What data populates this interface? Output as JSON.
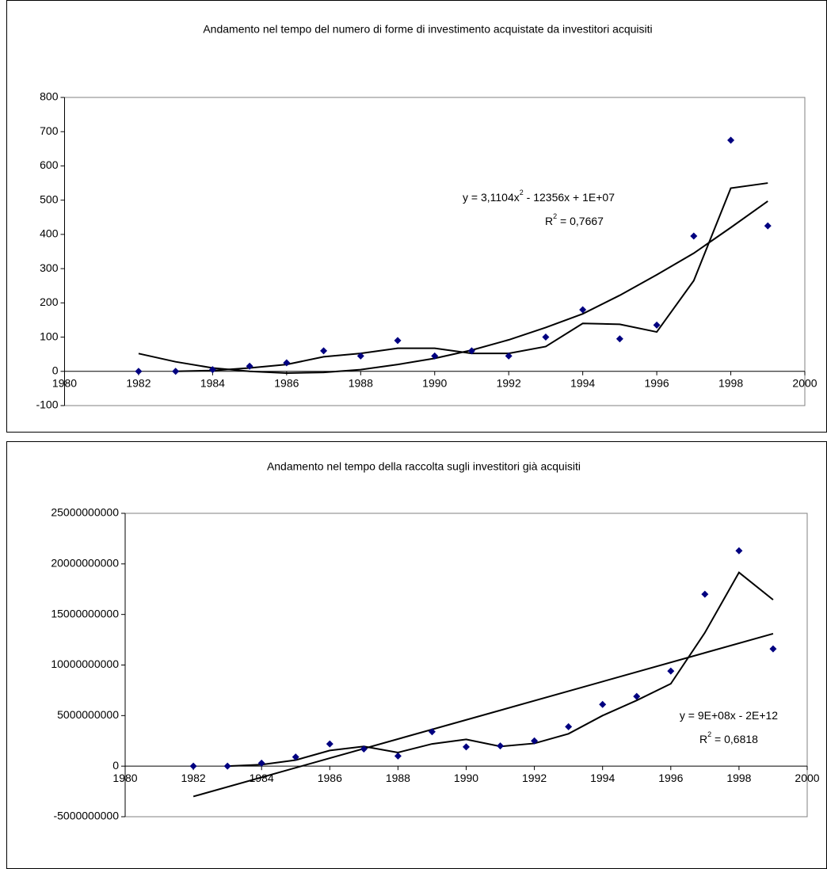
{
  "chart_data": [
    {
      "type": "scatter",
      "title": "Andamento nel tempo del numero di forme di investimento acquistate da investitori acquisiti",
      "x": [
        1982,
        1983,
        1984,
        1985,
        1986,
        1987,
        1988,
        1989,
        1990,
        1991,
        1992,
        1993,
        1994,
        1995,
        1996,
        1997,
        1998,
        1999
      ],
      "values": [
        0,
        0,
        5,
        15,
        25,
        60,
        45,
        90,
        45,
        60,
        45,
        100,
        180,
        95,
        135,
        395,
        675,
        425
      ],
      "color": "#000080",
      "lines": [
        {
          "color": "#000000",
          "x": [
            1983,
            1984,
            1985,
            1986,
            1987,
            1988,
            1989,
            1990,
            1991,
            1992,
            1993,
            1994,
            1995,
            1996,
            1997,
            1998,
            1999
          ],
          "values": [
            0,
            2.5,
            10,
            20,
            42.5,
            52.5,
            67.5,
            67.5,
            52.5,
            52.5,
            72.5,
            140,
            137.5,
            115,
            265,
            535,
            550
          ]
        },
        {
          "color": "#000000",
          "x": [
            1982,
            1983,
            1984,
            1985,
            1986,
            1987,
            1988,
            1989,
            1990,
            1991,
            1992,
            1993,
            1994,
            1995,
            1996,
            1997,
            1998,
            1999
          ],
          "values": [
            52,
            28,
            10,
            0,
            -5,
            -3,
            5,
            20,
            38,
            62,
            92,
            128,
            168,
            222,
            282,
            345,
            420,
            497
          ]
        }
      ],
      "equation": [
        "y = 3,1104x",
        "2",
        " - 12356x + 1E+07"
      ],
      "r_squared": [
        "R",
        "2",
        " = 0,7667"
      ],
      "xlim": [
        1980,
        2000
      ],
      "xticks": [
        1980,
        1982,
        1984,
        1986,
        1988,
        1990,
        1992,
        1994,
        1996,
        1998,
        2000
      ],
      "ylim": [
        -100,
        800
      ],
      "yticks": [
        -100,
        0,
        100,
        200,
        300,
        400,
        500,
        600,
        700,
        800
      ]
    },
    {
      "type": "scatter",
      "title": "Andamento nel tempo della raccolta sugli investitori già acquisiti",
      "x": [
        1982,
        1983,
        1984,
        1985,
        1986,
        1987,
        1988,
        1989,
        1990,
        1991,
        1992,
        1993,
        1994,
        1995,
        1996,
        1997,
        1998,
        1999
      ],
      "values": [
        0,
        0,
        300000000,
        900000000,
        2200000000,
        1700000000,
        1000000000,
        3400000000,
        1900000000,
        2000000000,
        2500000000,
        3900000000,
        6100000000,
        6900000000,
        9400000000,
        17000000000,
        21300000000,
        11600000000
      ],
      "color": "#000080",
      "lines": [
        {
          "color": "#000000",
          "x": [
            1983,
            1984,
            1985,
            1986,
            1987,
            1988,
            1989,
            1990,
            1991,
            1992,
            1993,
            1994,
            1995,
            1996,
            1997,
            1998,
            1999
          ],
          "values": [
            0,
            150000000,
            600000000,
            1550000000,
            1950000000,
            1350000000,
            2200000000,
            2650000000,
            1950000000,
            2250000000,
            3200000000,
            5000000000,
            6500000000,
            8150000000,
            13200000000,
            19150000000,
            16450000000
          ]
        },
        {
          "color": "#000000",
          "x": [
            1982,
            1999
          ],
          "values": [
            -3000000000,
            13100000000
          ]
        }
      ],
      "equation": [
        "y = 9E+08x - 2E+12"
      ],
      "r_squared": [
        "R",
        "2",
        " = 0,6818"
      ],
      "xlim": [
        1980,
        2000
      ],
      "xticks": [
        1980,
        1982,
        1984,
        1986,
        1988,
        1990,
        1992,
        1994,
        1996,
        1998,
        2000
      ],
      "ylim": [
        -5000000000,
        25000000000
      ],
      "yticks": [
        -5000000000,
        0,
        5000000000,
        10000000000,
        15000000000,
        20000000000,
        25000000000
      ]
    }
  ]
}
